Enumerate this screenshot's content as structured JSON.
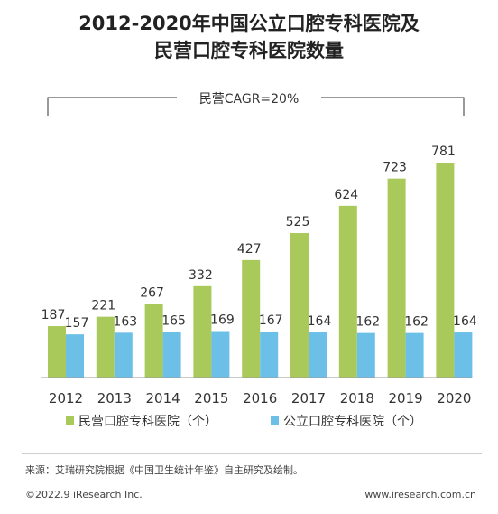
{
  "title_line1": "2012-2020年中国公立口腔专科医院及",
  "title_line2": "民营口腔专科医院数量",
  "annotation": "民营CAGR=20%",
  "source": "来源：艾瑞研究院根据《中国卫生统计年鉴》自主研究及绘制。",
  "copyright": "©2022.9 iResearch Inc.",
  "website": "www.iresearch.com.cn",
  "colors": {
    "private": "#a9c95b",
    "public": "#6cc0e8"
  },
  "chart_data": {
    "type": "bar",
    "categories": [
      "2012",
      "2013",
      "2014",
      "2015",
      "2016",
      "2017",
      "2018",
      "2019",
      "2020"
    ],
    "series": [
      {
        "name": "民营口腔专科医院（个）",
        "values": [
          187,
          221,
          267,
          332,
          427,
          525,
          624,
          723,
          781
        ]
      },
      {
        "name": "公立口腔专科医院（个）",
        "values": [
          157,
          163,
          165,
          169,
          167,
          164,
          162,
          162,
          164
        ]
      }
    ],
    "ylim": [
      0,
      850
    ],
    "legend_position": "bottom",
    "grid": false
  }
}
